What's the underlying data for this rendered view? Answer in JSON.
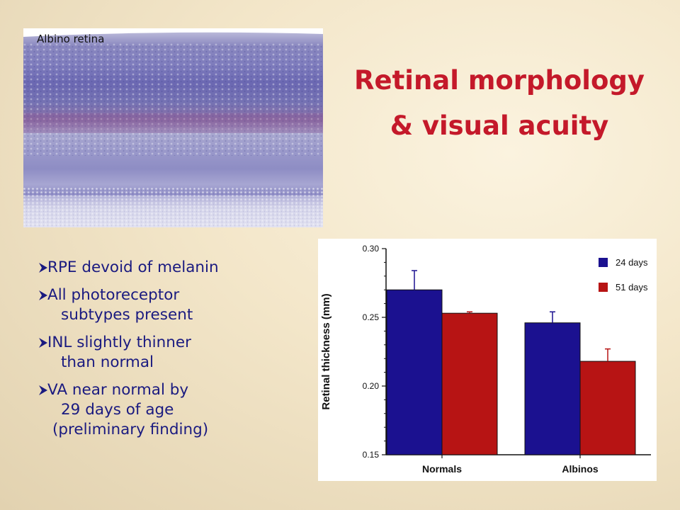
{
  "micrograph": {
    "label": "Albino retina"
  },
  "title": {
    "line1": "Retinal morphology",
    "line2": "& visual acuity"
  },
  "bullets": [
    {
      "lines": [
        "RPE devoid of melanin"
      ]
    },
    {
      "lines": [
        "All photoreceptor",
        "subtypes present"
      ]
    },
    {
      "lines": [
        "INL slightly thinner",
        "than normal"
      ]
    },
    {
      "lines": [
        "VA near normal by",
        "29 days of age",
        "(preliminary finding)"
      ]
    }
  ],
  "colors": {
    "title": "#c4192a",
    "bullet_text": "#1a1a80",
    "series_24": "#1b1190",
    "series_51": "#b71414"
  },
  "chart_data": {
    "type": "bar",
    "ylabel": "Retinal thickness (mm)",
    "xlabel": "",
    "ylim": [
      0.15,
      0.3
    ],
    "yticks": [
      "0.15",
      "0.20",
      "0.25",
      "0.30"
    ],
    "categories": [
      "Normals",
      "Albinos"
    ],
    "series": [
      {
        "name": "24 days",
        "color": "#1b1190",
        "values": [
          0.27,
          0.246
        ],
        "errors": [
          0.014,
          0.008
        ]
      },
      {
        "name": "51 days",
        "color": "#b71414",
        "values": [
          0.253,
          0.218
        ],
        "errors": [
          0.001,
          0.009
        ]
      }
    ],
    "legend_position": "top-right",
    "grid": false
  }
}
